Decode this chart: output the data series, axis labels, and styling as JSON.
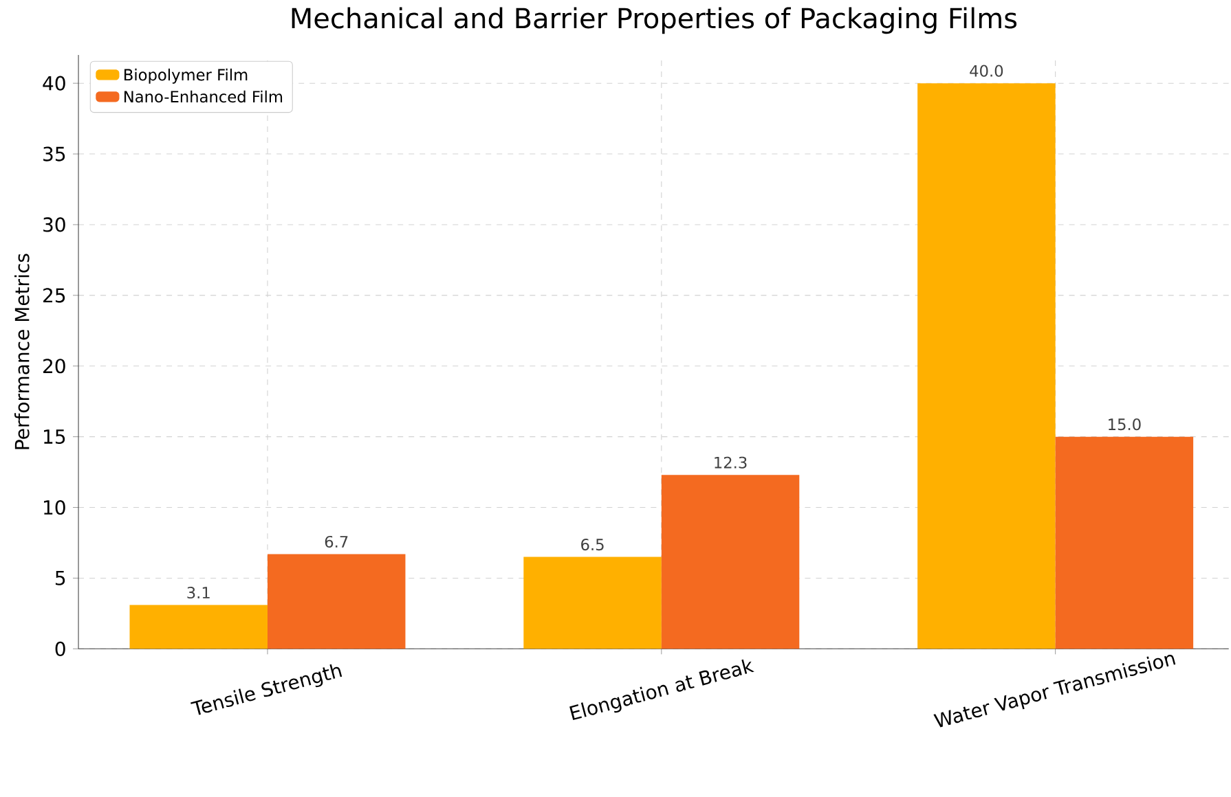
{
  "chart_data": {
    "type": "bar",
    "title": "Mechanical and Barrier Properties of Packaging Films",
    "ylabel": "Performance Metrics",
    "categories": [
      "Tensile Strength",
      "Elongation at Break",
      "Water Vapor Transmission"
    ],
    "series": [
      {
        "name": "Biopolymer Film",
        "color": "#ffb000",
        "values": [
          3.1,
          6.5,
          40.0
        ],
        "value_labels": [
          "3.1",
          "6.5",
          "40.0"
        ]
      },
      {
        "name": "Nano-Enhanced Film",
        "color": "#f46a20",
        "values": [
          6.7,
          12.3,
          15.0
        ],
        "value_labels": [
          "6.7",
          "12.3",
          "15.0"
        ]
      }
    ],
    "ylim": [
      0,
      42
    ],
    "yticks": [
      0,
      5,
      10,
      15,
      20,
      25,
      30,
      35,
      40
    ],
    "grid": true,
    "legend": "top left"
  }
}
